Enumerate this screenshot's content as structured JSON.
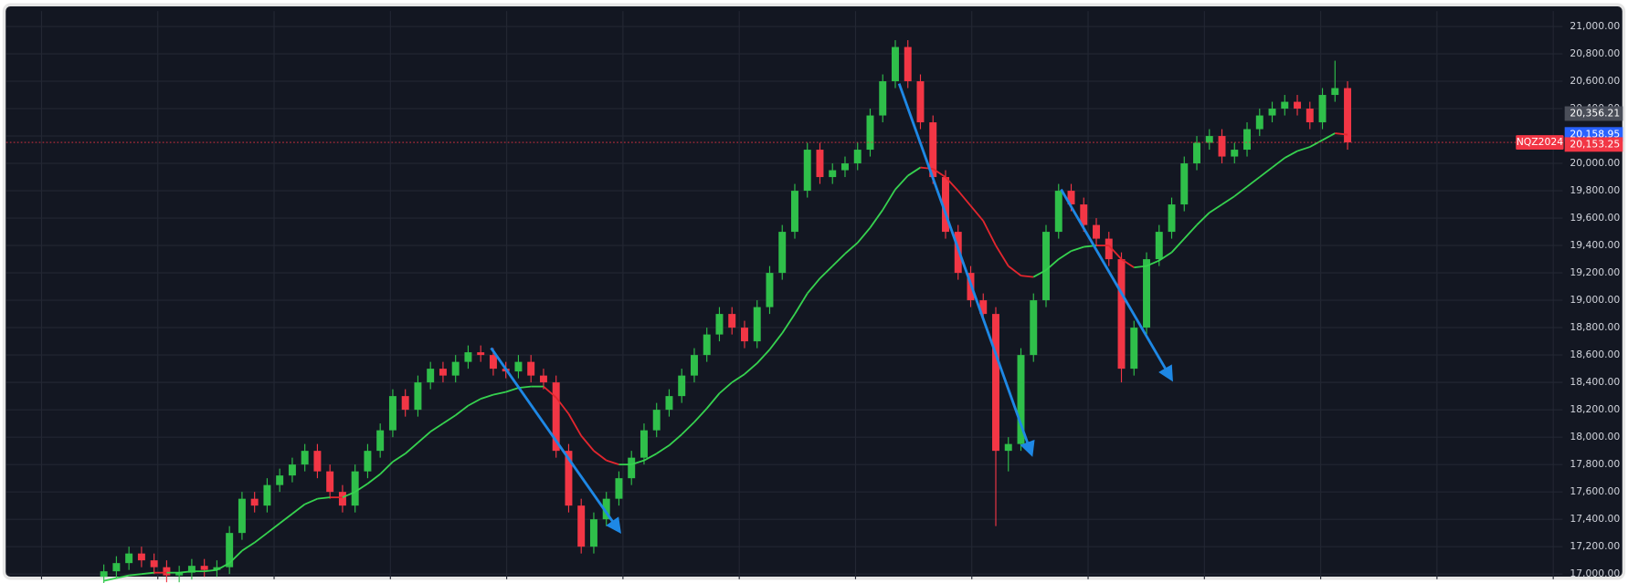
{
  "chart_data": {
    "type": "candlestick",
    "symbol": "NQZ2024",
    "up_color": "#2fbf4a",
    "down_color": "#f23645",
    "ma_up_color": "#36d24f",
    "ma_down_color": "#e3262e",
    "grid": true,
    "ylim": [
      16962,
      21113
    ],
    "yticks": [
      {
        "value": 17000,
        "label": "17,000.00"
      },
      {
        "value": 17200,
        "label": "17,200.00"
      },
      {
        "value": 17400,
        "label": "17,400.00"
      },
      {
        "value": 17600,
        "label": "17,600.00"
      },
      {
        "value": 17800,
        "label": "17,800.00"
      },
      {
        "value": 18000,
        "label": "18,000.00"
      },
      {
        "value": 18200,
        "label": "18,200.00"
      },
      {
        "value": 18400,
        "label": "18,400.00"
      },
      {
        "value": 18600,
        "label": "18,600.00"
      },
      {
        "value": 18800,
        "label": "18,800.00"
      },
      {
        "value": 19000,
        "label": "19,000.00"
      },
      {
        "value": 19200,
        "label": "19,200.00"
      },
      {
        "value": 19400,
        "label": "19,400.00"
      },
      {
        "value": 19600,
        "label": "19,600.00"
      },
      {
        "value": 19800,
        "label": "19,800.00"
      },
      {
        "value": 20000,
        "label": "20,000.00"
      },
      {
        "value": 20200,
        "label": "20,200.00"
      },
      {
        "value": 20400,
        "label": "20,400.00"
      },
      {
        "value": 20600,
        "label": "20,600.00"
      },
      {
        "value": 20800,
        "label": "20,800.00"
      },
      {
        "value": 21000,
        "label": "21,000.00"
      }
    ],
    "price_labels": [
      {
        "value": 20356.21,
        "label": "20,356.21",
        "color": "#4a4e59"
      },
      {
        "value": 20158.95,
        "label": "20,158.95",
        "color": "#2962ff"
      },
      {
        "value": 20153.25,
        "label": "20,153.25",
        "color": "#f23645"
      }
    ],
    "candles": [
      [
        16980,
        17070,
        16930,
        17020
      ],
      [
        17020,
        17130,
        16970,
        17080
      ],
      [
        17080,
        17200,
        17030,
        17150
      ],
      [
        17150,
        17200,
        17050,
        17100
      ],
      [
        17100,
        17150,
        17000,
        17050
      ],
      [
        17050,
        17100,
        16940,
        16990
      ],
      [
        16990,
        17060,
        16940,
        17010
      ],
      [
        17010,
        17110,
        16960,
        17060
      ],
      [
        17060,
        17110,
        16980,
        17030
      ],
      [
        17030,
        17100,
        16980,
        17050
      ],
      [
        17050,
        17350,
        17000,
        17300
      ],
      [
        17300,
        17600,
        17250,
        17550
      ],
      [
        17550,
        17600,
        17450,
        17500
      ],
      [
        17500,
        17700,
        17450,
        17650
      ],
      [
        17650,
        17770,
        17600,
        17720
      ],
      [
        17720,
        17850,
        17670,
        17800
      ],
      [
        17800,
        17950,
        17750,
        17900
      ],
      [
        17900,
        17950,
        17700,
        17750
      ],
      [
        17750,
        17800,
        17550,
        17600
      ],
      [
        17600,
        17650,
        17450,
        17500
      ],
      [
        17500,
        17800,
        17450,
        17750
      ],
      [
        17750,
        17950,
        17700,
        17900
      ],
      [
        17900,
        18100,
        17850,
        18050
      ],
      [
        18050,
        18350,
        18000,
        18300
      ],
      [
        18300,
        18350,
        18150,
        18200
      ],
      [
        18200,
        18450,
        18150,
        18400
      ],
      [
        18400,
        18550,
        18350,
        18500
      ],
      [
        18500,
        18550,
        18400,
        18450
      ],
      [
        18450,
        18600,
        18400,
        18550
      ],
      [
        18550,
        18670,
        18500,
        18620
      ],
      [
        18620,
        18670,
        18550,
        18600
      ],
      [
        18600,
        18650,
        18450,
        18500
      ],
      [
        18500,
        18550,
        18430,
        18480
      ],
      [
        18480,
        18600,
        18430,
        18550
      ],
      [
        18550,
        18600,
        18400,
        18450
      ],
      [
        18450,
        18500,
        18350,
        18400
      ],
      [
        18400,
        18450,
        17850,
        17900
      ],
      [
        17900,
        17950,
        17450,
        17500
      ],
      [
        17500,
        17550,
        17150,
        17200
      ],
      [
        17200,
        17450,
        17150,
        17400
      ],
      [
        17400,
        17600,
        17350,
        17550
      ],
      [
        17550,
        17750,
        17500,
        17700
      ],
      [
        17700,
        17900,
        17650,
        17850
      ],
      [
        17850,
        18100,
        17800,
        18050
      ],
      [
        18050,
        18250,
        18000,
        18200
      ],
      [
        18200,
        18350,
        18150,
        18300
      ],
      [
        18300,
        18500,
        18250,
        18450
      ],
      [
        18450,
        18650,
        18400,
        18600
      ],
      [
        18600,
        18800,
        18550,
        18750
      ],
      [
        18750,
        18950,
        18700,
        18900
      ],
      [
        18900,
        18950,
        18750,
        18800
      ],
      [
        18800,
        18850,
        18650,
        18700
      ],
      [
        18700,
        19000,
        18650,
        18950
      ],
      [
        18950,
        19250,
        18900,
        19200
      ],
      [
        19200,
        19550,
        19150,
        19500
      ],
      [
        19500,
        19850,
        19450,
        19800
      ],
      [
        19800,
        20150,
        19750,
        20100
      ],
      [
        20100,
        20150,
        19850,
        19900
      ],
      [
        19900,
        20000,
        19850,
        19950
      ],
      [
        19950,
        20050,
        19900,
        20000
      ],
      [
        20000,
        20150,
        19950,
        20100
      ],
      [
        20100,
        20400,
        20050,
        20350
      ],
      [
        20350,
        20650,
        20300,
        20600
      ],
      [
        20600,
        20900,
        20550,
        20850
      ],
      [
        20850,
        20900,
        20550,
        20600
      ],
      [
        20600,
        20650,
        20250,
        20300
      ],
      [
        20300,
        20350,
        19850,
        19900
      ],
      [
        19900,
        19950,
        19450,
        19500
      ],
      [
        19500,
        19550,
        19150,
        19200
      ],
      [
        19200,
        19250,
        18950,
        19000
      ],
      [
        19000,
        19050,
        18850,
        18900
      ],
      [
        18900,
        18950,
        17350,
        17900
      ],
      [
        17900,
        18000,
        17750,
        17950
      ],
      [
        17950,
        18650,
        17900,
        18600
      ],
      [
        18600,
        19050,
        18550,
        19000
      ],
      [
        19000,
        19550,
        18950,
        19500
      ],
      [
        19500,
        19850,
        19450,
        19800
      ],
      [
        19800,
        19850,
        19650,
        19700
      ],
      [
        19700,
        19750,
        19500,
        19550
      ],
      [
        19550,
        19600,
        19400,
        19450
      ],
      [
        19450,
        19500,
        19250,
        19300
      ],
      [
        19300,
        19350,
        18400,
        18500
      ],
      [
        18500,
        18850,
        18450,
        18800
      ],
      [
        18800,
        19350,
        18750,
        19300
      ],
      [
        19300,
        19550,
        19250,
        19500
      ],
      [
        19500,
        19750,
        19450,
        19700
      ],
      [
        19700,
        20050,
        19650,
        20000
      ],
      [
        20000,
        20200,
        19950,
        20150
      ],
      [
        20150,
        20250,
        20100,
        20200
      ],
      [
        20200,
        20250,
        20000,
        20050
      ],
      [
        20050,
        20150,
        20000,
        20100
      ],
      [
        20100,
        20300,
        20050,
        20250
      ],
      [
        20250,
        20400,
        20200,
        20350
      ],
      [
        20350,
        20450,
        20300,
        20400
      ],
      [
        20400,
        20500,
        20350,
        20450
      ],
      [
        20450,
        20500,
        20350,
        20400
      ],
      [
        20400,
        20450,
        20250,
        20300
      ],
      [
        20300,
        20550,
        20250,
        20500
      ],
      [
        20500,
        20750,
        20450,
        20550
      ],
      [
        20550,
        20600,
        20100,
        20153.25
      ]
    ],
    "ma": [
      16950,
      16970,
      16990,
      17000,
      17010,
      17010,
      17010,
      17020,
      17020,
      17030,
      17080,
      17170,
      17230,
      17300,
      17370,
      17440,
      17510,
      17550,
      17560,
      17560,
      17600,
      17660,
      17730,
      17820,
      17880,
      17960,
      18040,
      18100,
      18160,
      18230,
      18280,
      18310,
      18330,
      18360,
      18370,
      18370,
      18290,
      18170,
      18010,
      17900,
      17830,
      17800,
      17800,
      17830,
      17880,
      17940,
      18020,
      18110,
      18210,
      18320,
      18400,
      18460,
      18540,
      18640,
      18760,
      18900,
      19050,
      19160,
      19250,
      19340,
      19420,
      19530,
      19660,
      19810,
      19910,
      19970,
      19960,
      19900,
      19800,
      19690,
      19580,
      19400,
      19250,
      19180,
      19170,
      19220,
      19300,
      19360,
      19390,
      19400,
      19400,
      19300,
      19240,
      19250,
      19290,
      19350,
      19450,
      19550,
      19640,
      19700,
      19760,
      19830,
      19900,
      19970,
      20040,
      20090,
      20120,
      20170,
      20220,
      20210
    ]
  }
}
